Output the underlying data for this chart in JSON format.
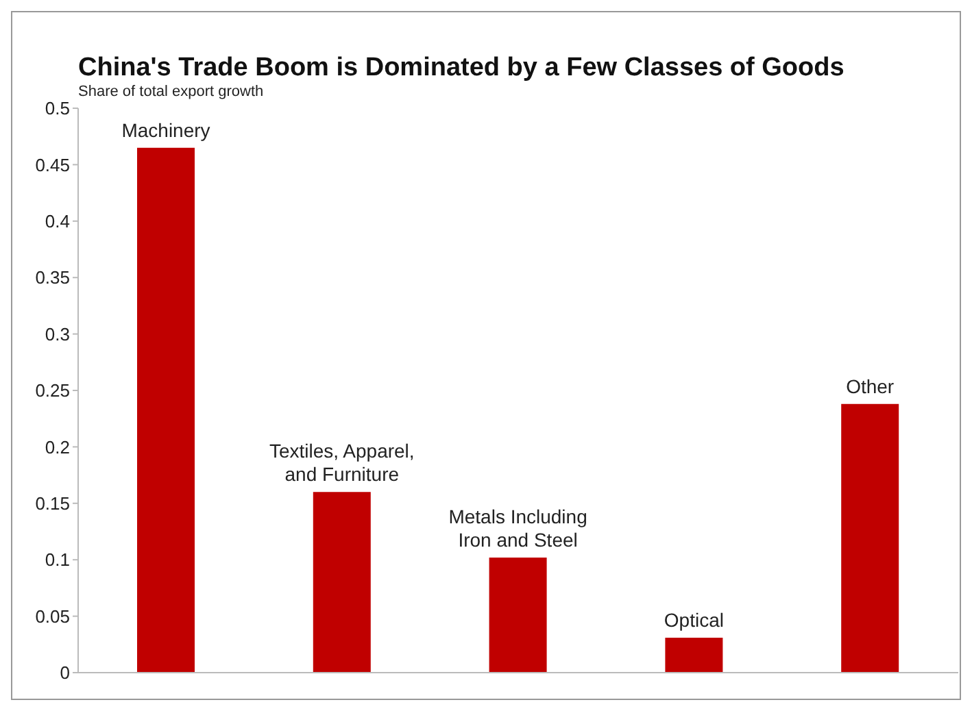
{
  "chart_data": {
    "type": "bar",
    "title": "China's Trade Boom is Dominated by a Few Classes of Goods",
    "subtitle": "Share of total export growth",
    "categories": [
      "Machinery",
      "Textiles, Apparel, and Furniture",
      "Metals Including Iron and Steel",
      "Optical",
      "Other"
    ],
    "values": [
      0.465,
      0.16,
      0.102,
      0.031,
      0.238
    ],
    "color": "#c00000",
    "ylim": [
      0,
      0.5
    ],
    "yticks": [
      0,
      0.05,
      0.1,
      0.15,
      0.2,
      0.25,
      0.3,
      0.35,
      0.4,
      0.45,
      0.5
    ],
    "tick_labels": "y",
    "grid": false
  }
}
